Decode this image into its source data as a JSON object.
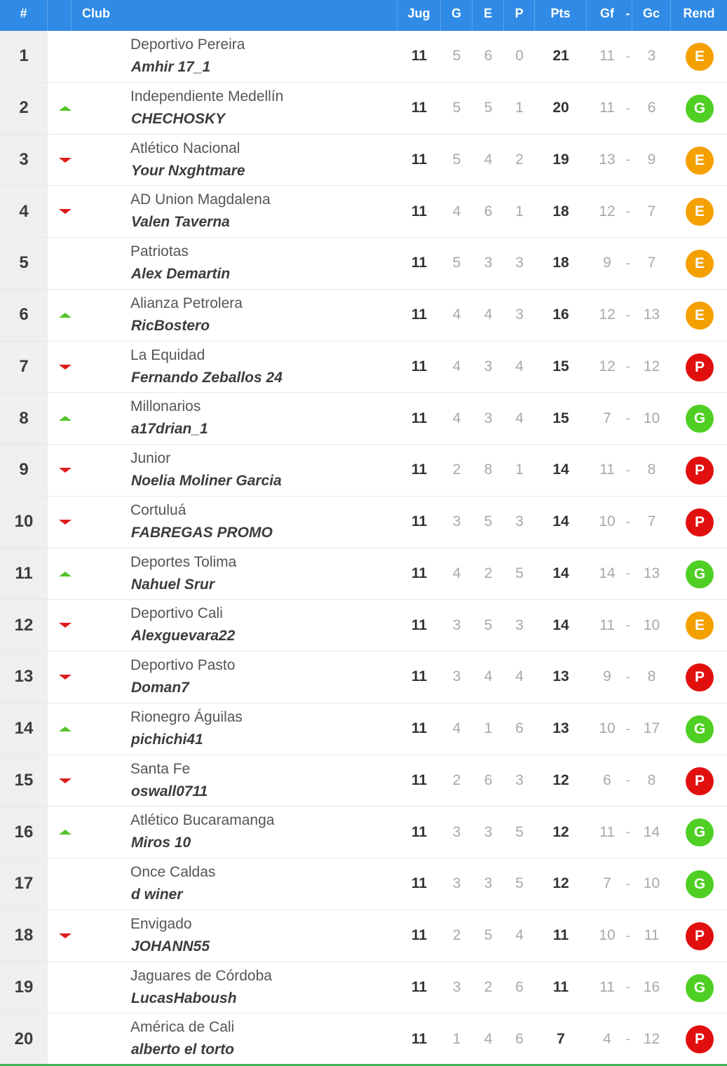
{
  "header": {
    "pos": "#",
    "club": "Club",
    "jug": "Jug",
    "g": "G",
    "e": "E",
    "p": "P",
    "pts": "Pts",
    "gf": "Gf",
    "dash": "-",
    "gc": "Gc",
    "rend": "Rend"
  },
  "colors": {
    "header_bg": "#2f8be6",
    "up_arrow": "#55c22a",
    "down_arrow": "#e01a1a",
    "rend_E": "#f4a000",
    "rend_G": "#4fcf23",
    "rend_P": "#e20f0f"
  },
  "rows": [
    {
      "pos": "1",
      "trend": "none",
      "club": "Deportivo Pereira",
      "player": "Amhir 17_1",
      "jug": "11",
      "g": "5",
      "e": "6",
      "p": "0",
      "pts": "21",
      "gf": "11",
      "gc": "3",
      "rend": "E"
    },
    {
      "pos": "2",
      "trend": "up",
      "club": "Independiente Medellín",
      "player": "CHECHOSKY",
      "jug": "11",
      "g": "5",
      "e": "5",
      "p": "1",
      "pts": "20",
      "gf": "11",
      "gc": "6",
      "rend": "G"
    },
    {
      "pos": "3",
      "trend": "down",
      "club": "Atlético Nacional",
      "player": "Your Nxghtmare",
      "jug": "11",
      "g": "5",
      "e": "4",
      "p": "2",
      "pts": "19",
      "gf": "13",
      "gc": "9",
      "rend": "E"
    },
    {
      "pos": "4",
      "trend": "down",
      "club": "AD Union Magdalena",
      "player": "Valen Taverna",
      "jug": "11",
      "g": "4",
      "e": "6",
      "p": "1",
      "pts": "18",
      "gf": "12",
      "gc": "7",
      "rend": "E"
    },
    {
      "pos": "5",
      "trend": "none",
      "club": "Patriotas",
      "player": "Alex Demartin",
      "jug": "11",
      "g": "5",
      "e": "3",
      "p": "3",
      "pts": "18",
      "gf": "9",
      "gc": "7",
      "rend": "E"
    },
    {
      "pos": "6",
      "trend": "up",
      "club": "Alianza Petrolera",
      "player": "RicBostero",
      "jug": "11",
      "g": "4",
      "e": "4",
      "p": "3",
      "pts": "16",
      "gf": "12",
      "gc": "13",
      "rend": "E"
    },
    {
      "pos": "7",
      "trend": "down",
      "club": "La Equidad",
      "player": "Fernando Zeballos 24",
      "jug": "11",
      "g": "4",
      "e": "3",
      "p": "4",
      "pts": "15",
      "gf": "12",
      "gc": "12",
      "rend": "P"
    },
    {
      "pos": "8",
      "trend": "up",
      "club": "Millonarios",
      "player": "a17drian_1",
      "jug": "11",
      "g": "4",
      "e": "3",
      "p": "4",
      "pts": "15",
      "gf": "7",
      "gc": "10",
      "rend": "G"
    },
    {
      "pos": "9",
      "trend": "down",
      "club": "Junior",
      "player": "Noelia Moliner Garcia",
      "jug": "11",
      "g": "2",
      "e": "8",
      "p": "1",
      "pts": "14",
      "gf": "11",
      "gc": "8",
      "rend": "P"
    },
    {
      "pos": "10",
      "trend": "down",
      "club": "Cortuluá",
      "player": "FABREGAS PROMO",
      "jug": "11",
      "g": "3",
      "e": "5",
      "p": "3",
      "pts": "14",
      "gf": "10",
      "gc": "7",
      "rend": "P"
    },
    {
      "pos": "11",
      "trend": "up",
      "club": "Deportes Tolima",
      "player": "Nahuel Srur",
      "jug": "11",
      "g": "4",
      "e": "2",
      "p": "5",
      "pts": "14",
      "gf": "14",
      "gc": "13",
      "rend": "G"
    },
    {
      "pos": "12",
      "trend": "down",
      "club": "Deportivo Cali",
      "player": "Alexguevara22",
      "jug": "11",
      "g": "3",
      "e": "5",
      "p": "3",
      "pts": "14",
      "gf": "11",
      "gc": "10",
      "rend": "E"
    },
    {
      "pos": "13",
      "trend": "down",
      "club": "Deportivo Pasto",
      "player": "Doman7",
      "jug": "11",
      "g": "3",
      "e": "4",
      "p": "4",
      "pts": "13",
      "gf": "9",
      "gc": "8",
      "rend": "P"
    },
    {
      "pos": "14",
      "trend": "up",
      "club": "Rionegro Águilas",
      "player": "pichichi41",
      "jug": "11",
      "g": "4",
      "e": "1",
      "p": "6",
      "pts": "13",
      "gf": "10",
      "gc": "17",
      "rend": "G"
    },
    {
      "pos": "15",
      "trend": "down",
      "club": "Santa Fe",
      "player": "oswall0711",
      "jug": "11",
      "g": "2",
      "e": "6",
      "p": "3",
      "pts": "12",
      "gf": "6",
      "gc": "8",
      "rend": "P"
    },
    {
      "pos": "16",
      "trend": "up",
      "club": "Atlético Bucaramanga",
      "player": "Miros 10",
      "jug": "11",
      "g": "3",
      "e": "3",
      "p": "5",
      "pts": "12",
      "gf": "11",
      "gc": "14",
      "rend": "G"
    },
    {
      "pos": "17",
      "trend": "none",
      "club": "Once Caldas",
      "player": "d winer",
      "jug": "11",
      "g": "3",
      "e": "3",
      "p": "5",
      "pts": "12",
      "gf": "7",
      "gc": "10",
      "rend": "G"
    },
    {
      "pos": "18",
      "trend": "down",
      "club": "Envigado",
      "player": "JOHANN55",
      "jug": "11",
      "g": "2",
      "e": "5",
      "p": "4",
      "pts": "11",
      "gf": "10",
      "gc": "11",
      "rend": "P"
    },
    {
      "pos": "19",
      "trend": "none",
      "club": "Jaguares de Córdoba",
      "player": "LucasHaboush",
      "jug": "11",
      "g": "3",
      "e": "2",
      "p": "6",
      "pts": "11",
      "gf": "11",
      "gc": "16",
      "rend": "G"
    },
    {
      "pos": "20",
      "trend": "none",
      "club": "América de Cali",
      "player": "alberto el torto",
      "jug": "11",
      "g": "1",
      "e": "4",
      "p": "6",
      "pts": "7",
      "gf": "4",
      "gc": "12",
      "rend": "P"
    }
  ]
}
